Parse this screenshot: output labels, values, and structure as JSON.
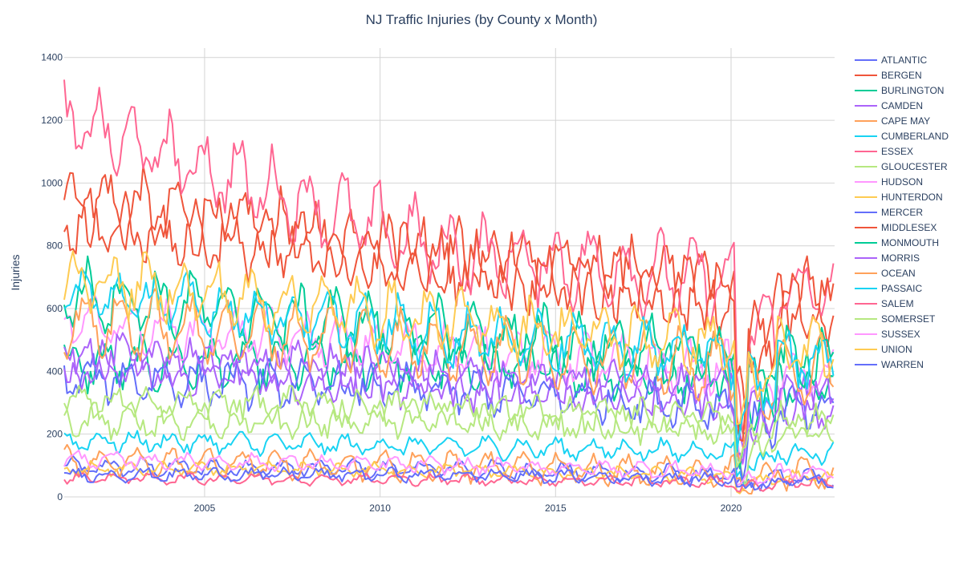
{
  "chart_data": {
    "type": "line",
    "title": "NJ Traffic Injuries (by County x Month)",
    "xlabel": "",
    "ylabel": "Injuries",
    "xlim": [
      2001.0,
      2022.95
    ],
    "ylim": [
      0,
      1430
    ],
    "x_ticks": [
      2005,
      2010,
      2015,
      2020
    ],
    "y_ticks": [
      0,
      200,
      400,
      600,
      800,
      1000,
      1200,
      1400
    ],
    "grid": true,
    "legend_position": "right",
    "x_start": 2001.0,
    "x_step": 0.08333,
    "series": [
      {
        "name": "ATLANTIC",
        "color": "#636efa",
        "mean_start": 95,
        "mean_mid": 90,
        "mean_end": 60,
        "amplitude": 22,
        "noise": 14
      },
      {
        "name": "BERGEN",
        "color": "#EF553B",
        "mean_start": 950,
        "mean_mid": 760,
        "mean_end": 620,
        "amplitude": 90,
        "noise": 60
      },
      {
        "name": "BURLINGTON",
        "color": "#00cc96",
        "mean_start": 420,
        "mean_mid": 430,
        "mean_end": 380,
        "amplitude": 60,
        "noise": 45
      },
      {
        "name": "CAMDEN",
        "color": "#ab63fa",
        "mean_start": 420,
        "mean_mid": 360,
        "mean_end": 300,
        "amplitude": 55,
        "noise": 40
      },
      {
        "name": "CAPE MAY",
        "color": "#FFA15A",
        "mean_start": 110,
        "mean_mid": 100,
        "mean_end": 70,
        "amplitude": 40,
        "noise": 18
      },
      {
        "name": "CUMBERLAND",
        "color": "#19d3f3",
        "mean_start": 180,
        "mean_mid": 160,
        "mean_end": 140,
        "amplitude": 25,
        "noise": 18
      },
      {
        "name": "ESSEX",
        "color": "#FF6692",
        "mean_start": 1200,
        "mean_mid": 780,
        "mean_end": 650,
        "amplitude": 100,
        "noise": 60
      },
      {
        "name": "GLOUCESTER",
        "color": "#B6E880",
        "mean_start": 240,
        "mean_mid": 250,
        "mean_end": 210,
        "amplitude": 40,
        "noise": 30
      },
      {
        "name": "HUDSON",
        "color": "#FF97FF",
        "mean_start": 560,
        "mean_mid": 470,
        "mean_end": 380,
        "amplitude": 60,
        "noise": 40
      },
      {
        "name": "HUNTERDON",
        "color": "#FECB52",
        "mean_start": 90,
        "mean_mid": 85,
        "mean_end": 60,
        "amplitude": 15,
        "noise": 12
      },
      {
        "name": "MERCER",
        "color": "#636efa",
        "mean_start": 380,
        "mean_mid": 340,
        "mean_end": 270,
        "amplitude": 50,
        "noise": 38
      },
      {
        "name": "MIDDLESEX",
        "color": "#EF553B",
        "mean_start": 880,
        "mean_mid": 740,
        "mean_end": 600,
        "amplitude": 85,
        "noise": 55
      },
      {
        "name": "MONMOUTH",
        "color": "#00cc96",
        "mean_start": 650,
        "mean_mid": 520,
        "mean_end": 420,
        "amplitude": 80,
        "noise": 50
      },
      {
        "name": "MORRIS",
        "color": "#ab63fa",
        "mean_start": 450,
        "mean_mid": 380,
        "mean_end": 320,
        "amplitude": 55,
        "noise": 40
      },
      {
        "name": "OCEAN",
        "color": "#FFA15A",
        "mean_start": 560,
        "mean_mid": 480,
        "mean_end": 400,
        "amplitude": 85,
        "noise": 40
      },
      {
        "name": "PASSAIC",
        "color": "#19d3f3",
        "mean_start": 650,
        "mean_mid": 520,
        "mean_end": 430,
        "amplitude": 70,
        "noise": 45
      },
      {
        "name": "SALEM",
        "color": "#FF6692",
        "mean_start": 60,
        "mean_mid": 55,
        "mean_end": 45,
        "amplitude": 12,
        "noise": 10
      },
      {
        "name": "SOMERSET",
        "color": "#B6E880",
        "mean_start": 300,
        "mean_mid": 280,
        "mean_end": 230,
        "amplitude": 40,
        "noise": 30
      },
      {
        "name": "SUSSEX",
        "color": "#FF97FF",
        "mean_start": 120,
        "mean_mid": 100,
        "mean_end": 75,
        "amplitude": 18,
        "noise": 14
      },
      {
        "name": "UNION",
        "color": "#FECB52",
        "mean_start": 700,
        "mean_mid": 560,
        "mean_end": 460,
        "amplitude": 70,
        "noise": 50
      },
      {
        "name": "WARREN",
        "color": "#636efa",
        "mean_start": 70,
        "mean_mid": 70,
        "mean_end": 50,
        "amplitude": 14,
        "noise": 12
      }
    ]
  }
}
